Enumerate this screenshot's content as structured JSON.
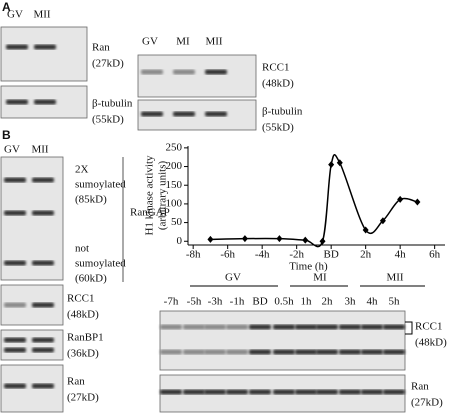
{
  "panel_a": {
    "letter": "A",
    "left_blot": {
      "lanes": [
        "GV",
        "MII"
      ],
      "rows": [
        {
          "label": "Ran",
          "size": "(27kD)"
        },
        {
          "label": "β-tubulin",
          "size": "(55kD)"
        }
      ]
    },
    "right_blot": {
      "lanes": [
        "GV",
        "MI",
        "MII"
      ],
      "rows": [
        {
          "label": "RCC1",
          "size": "(48kD)"
        },
        {
          "label": "β-tubulin",
          "size": "(55kD)"
        }
      ]
    }
  },
  "panel_b": {
    "letter": "B",
    "left_blot": {
      "lanes": [
        "GV",
        "MII"
      ],
      "rangap": {
        "upper": [
          "2X",
          "sumoylated",
          "(85kD)"
        ],
        "lower": [
          "not",
          "sumoylated",
          "(60kD)"
        ],
        "label": "RanGAP"
      },
      "rows": [
        {
          "label": "RCC1",
          "size": "(48kD)"
        },
        {
          "label": "RanBP1",
          "size": "(36kD)"
        },
        {
          "label": "Ran",
          "size": "(27kD)"
        }
      ]
    },
    "bottom_blot": {
      "groups": [
        "GV",
        "MI",
        "MII"
      ],
      "lanes": [
        "-7h",
        "-5h",
        "-3h",
        "-1h",
        "BD",
        "0.5h",
        "1h",
        "2h",
        "3h",
        "4h",
        "5h"
      ],
      "rows": [
        {
          "label": "RCC1",
          "size": "(48kD)"
        },
        {
          "label": "Ran",
          "size": "(27kD)"
        }
      ]
    }
  },
  "chart_data": {
    "type": "line",
    "ylabel": [
      "H1 kinase activity",
      "(arbitrary units)"
    ],
    "xlabel": "Time (h)",
    "x": [
      -7,
      -5,
      -3,
      -1.5,
      -0.5,
      0,
      0.5,
      2,
      3,
      4,
      5
    ],
    "series": [
      {
        "color": "#000000",
        "values": [
          5,
          7,
          7,
          3,
          0,
          205,
          210,
          30,
          55,
          112,
          105
        ]
      }
    ],
    "xlim": [
      -8.3,
      6.6
    ],
    "xticks": [
      {
        "value": -8,
        "label": "-8h"
      },
      {
        "value": -6,
        "label": "-6h"
      },
      {
        "value": -4,
        "label": "-4h"
      },
      {
        "value": -2,
        "label": "-2h"
      },
      {
        "value": 0,
        "label": "BD"
      },
      {
        "value": 2,
        "label": "2h"
      },
      {
        "value": 4,
        "label": "4h"
      },
      {
        "value": 6,
        "label": "6h"
      }
    ],
    "ylim": [
      -10,
      255
    ],
    "yticks": [
      0,
      50,
      100,
      150,
      200,
      250
    ]
  }
}
